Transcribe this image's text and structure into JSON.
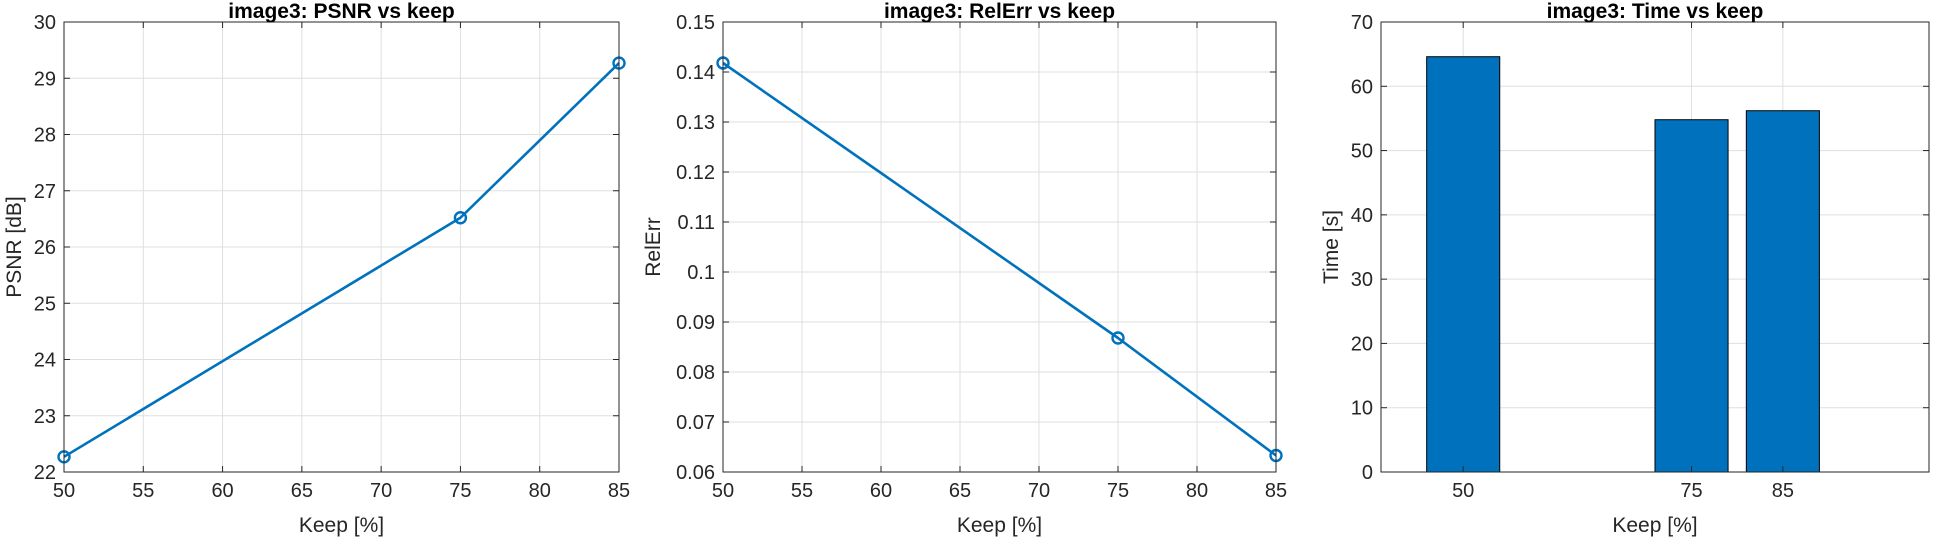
{
  "colors": {
    "series": "#0072BD",
    "grid": "#dfdfdf",
    "axis": "#262626",
    "bar_edge": "#000000"
  },
  "chart_data": [
    {
      "type": "line",
      "title": "image3: PSNR vs keep",
      "xlabel": "Keep [%]",
      "ylabel": "PSNR [dB]",
      "x": [
        50,
        75,
        85
      ],
      "y": [
        22.27,
        26.52,
        29.27
      ],
      "xlim": [
        50,
        85
      ],
      "ylim": [
        22,
        30
      ],
      "xticks": [
        50,
        55,
        60,
        65,
        70,
        75,
        80,
        85
      ],
      "xtick_labels": [
        "50",
        "55",
        "60",
        "65",
        "70",
        "75",
        "80",
        "85"
      ],
      "yticks": [
        22,
        23,
        24,
        25,
        26,
        27,
        28,
        29,
        30
      ],
      "ytick_labels": [
        "22",
        "23",
        "24",
        "25",
        "26",
        "27",
        "28",
        "29",
        "30"
      ],
      "marker": "circle",
      "grid": true
    },
    {
      "type": "line",
      "title": "image3: RelErr vs keep",
      "xlabel": "Keep [%]",
      "ylabel": "RelErr",
      "x": [
        50,
        75,
        85
      ],
      "y": [
        0.1418,
        0.0868,
        0.0633
      ],
      "xlim": [
        50,
        85
      ],
      "ylim": [
        0.06,
        0.15
      ],
      "xticks": [
        50,
        55,
        60,
        65,
        70,
        75,
        80,
        85
      ],
      "xtick_labels": [
        "50",
        "55",
        "60",
        "65",
        "70",
        "75",
        "80",
        "85"
      ],
      "yticks": [
        0.06,
        0.07,
        0.08,
        0.09,
        0.1,
        0.11,
        0.12,
        0.13,
        0.14,
        0.15
      ],
      "ytick_labels": [
        "0.06",
        "0.07",
        "0.08",
        "0.09",
        "0.1",
        "0.11",
        "0.12",
        "0.13",
        "0.14",
        "0.15"
      ],
      "marker": "circle",
      "grid": true
    },
    {
      "type": "bar",
      "title": "image3: Time vs keep",
      "xlabel": "Keep [%]",
      "ylabel": "Time [s]",
      "x": [
        50,
        75,
        85
      ],
      "y": [
        64.6,
        54.8,
        56.2
      ],
      "xlim": [
        41,
        101
      ],
      "ylim": [
        0,
        70
      ],
      "bar_width": 8,
      "xticks": [
        50,
        75,
        85
      ],
      "xtick_labels": [
        "50",
        "75",
        "85"
      ],
      "yticks": [
        0,
        10,
        20,
        30,
        40,
        50,
        60,
        70
      ],
      "ytick_labels": [
        "0",
        "10",
        "20",
        "30",
        "40",
        "50",
        "60",
        "70"
      ],
      "grid": true
    }
  ]
}
